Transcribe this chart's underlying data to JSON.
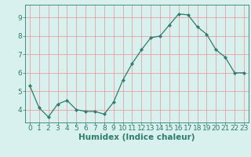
{
  "x": [
    0,
    1,
    2,
    3,
    4,
    5,
    6,
    7,
    8,
    9,
    10,
    11,
    12,
    13,
    14,
    15,
    16,
    17,
    18,
    19,
    20,
    21,
    22,
    23
  ],
  "y": [
    5.3,
    4.1,
    3.6,
    4.3,
    4.5,
    4.0,
    3.9,
    3.9,
    3.75,
    4.4,
    5.6,
    6.5,
    7.25,
    7.9,
    8.0,
    8.6,
    9.2,
    9.15,
    8.5,
    8.1,
    7.25,
    6.85,
    6.0,
    6.0
  ],
  "line_color": "#2e7d6e",
  "marker": "D",
  "marker_size": 2.2,
  "bg_color": "#d8f0ee",
  "grid_color": "#e8a0a0",
  "xlabel": "Humidex (Indice chaleur)",
  "ylim": [
    3.3,
    9.7
  ],
  "xlim": [
    -0.5,
    23.5
  ],
  "yticks": [
    4,
    5,
    6,
    7,
    8,
    9
  ],
  "xticks": [
    0,
    1,
    2,
    3,
    4,
    5,
    6,
    7,
    8,
    9,
    10,
    11,
    12,
    13,
    14,
    15,
    16,
    17,
    18,
    19,
    20,
    21,
    22,
    23
  ],
  "tick_color": "#2e7d6e",
  "font_size": 6.5,
  "xlabel_fontsize": 7.5
}
